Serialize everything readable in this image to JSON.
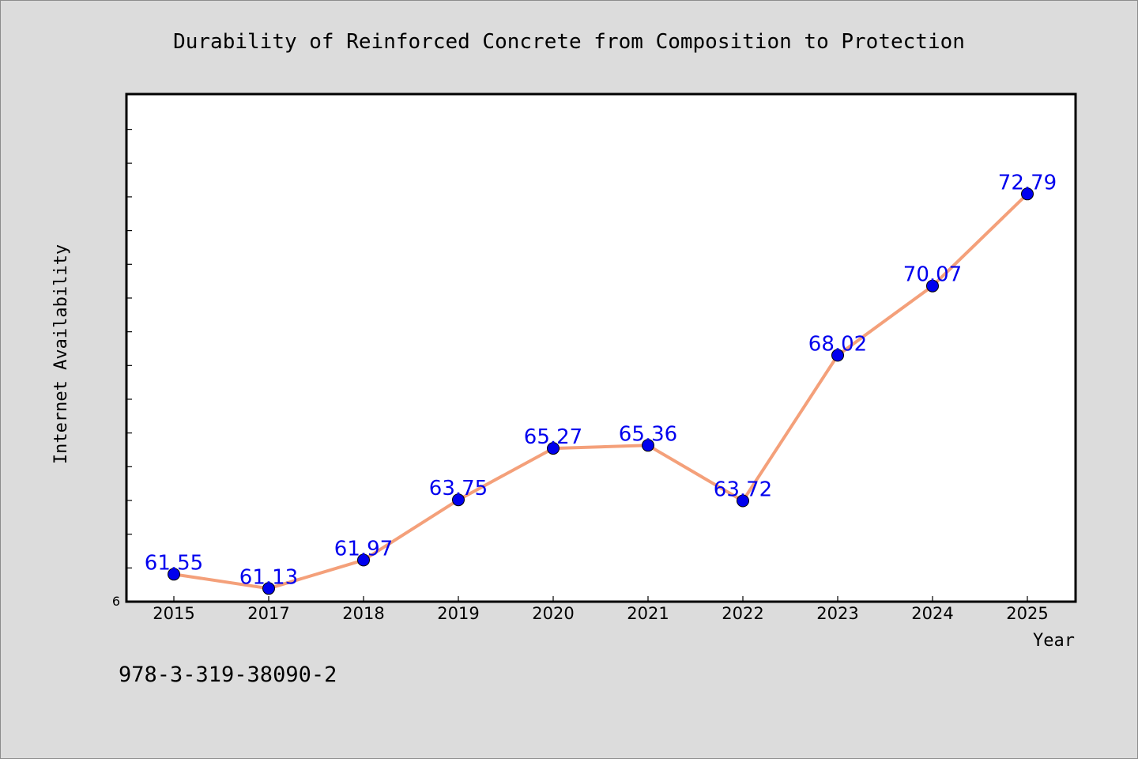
{
  "chart_data": {
    "type": "line",
    "title": "Durability of Reinforced Concrete from Composition to Protection",
    "xlabel": "Year",
    "ylabel": "Internet Availability",
    "categories": [
      "2015",
      "2017",
      "2018",
      "2019",
      "2020",
      "2021",
      "2022",
      "2023",
      "2024",
      "2025"
    ],
    "series": [
      {
        "values": [
          61.55,
          61.13,
          61.97,
          63.75,
          65.27,
          65.36,
          63.72,
          68.02,
          70.07,
          72.79
        ]
      }
    ],
    "data_labels": [
      "61.55",
      "61.13",
      "61.97",
      "63.75",
      "65.27",
      "65.36",
      "63.72",
      "68.02",
      "70.07",
      "72.79"
    ],
    "y_tick_labels": [
      "6"
    ],
    "ylim": [
      60.74,
      75.74
    ],
    "grid": false,
    "legend": "none",
    "colors": {
      "line": "#f4a07a",
      "marker": "#0000ee",
      "data_label": "#0000ee",
      "background": "#dcdcdc",
      "plot_background": "#ffffff"
    }
  },
  "footer": {
    "isbn": "978-3-319-38090-2"
  }
}
